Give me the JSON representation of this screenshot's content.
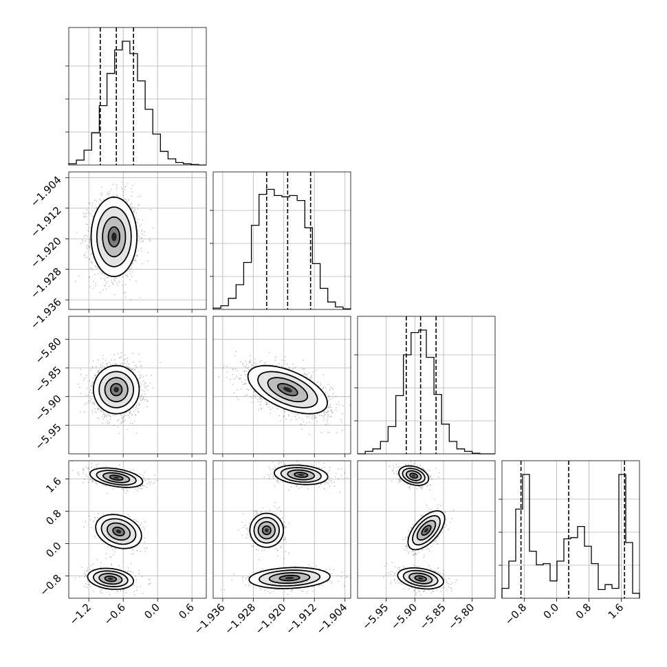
{
  "chart_data": {
    "type": "corner",
    "grid": true,
    "parameters": [
      {
        "range": [
          -1.55,
          0.85
        ],
        "ticks": [
          -1.2,
          -0.6,
          0.0,
          0.6
        ],
        "tick_labels": [
          "−1.2",
          "−0.6",
          "0.0",
          "0.6"
        ],
        "quantiles": [
          -1.0,
          -0.72,
          -0.42
        ],
        "histogram": [
          0.01,
          0.04,
          0.12,
          0.26,
          0.48,
          0.74,
          0.93,
          1.0,
          0.9,
          0.68,
          0.45,
          0.25,
          0.11,
          0.05,
          0.02,
          0.01,
          0.004,
          0.0
        ]
      },
      {
        "range": [
          -1.9385,
          -1.9025
        ],
        "ticks": [
          -1.936,
          -1.928,
          -1.92,
          -1.912,
          -1.904
        ],
        "tick_labels": [
          "−1.936",
          "−1.928",
          "−1.920",
          "−1.912",
          "−1.904"
        ],
        "quantiles": [
          -1.9245,
          -1.919,
          -1.913
        ],
        "histogram": [
          0.01,
          0.03,
          0.09,
          0.2,
          0.38,
          0.68,
          0.93,
          0.97,
          0.92,
          0.91,
          0.92,
          0.88,
          0.66,
          0.37,
          0.17,
          0.06,
          0.02,
          0.005
        ]
      },
      {
        "range": [
          -6.0,
          -5.76
        ],
        "ticks": [
          -5.95,
          -5.9,
          -5.85,
          -5.8
        ],
        "tick_labels": [
          "−5.95",
          "−5.90",
          "−5.85",
          "−5.80"
        ],
        "quantiles": [
          -5.915,
          -5.89,
          -5.863
        ],
        "histogram": [
          0.0,
          0.02,
          0.04,
          0.1,
          0.22,
          0.47,
          0.8,
          0.98,
          1.0,
          0.78,
          0.48,
          0.24,
          0.1,
          0.04,
          0.02,
          0.005,
          0.0,
          0.0
        ]
      },
      {
        "range": [
          -1.35,
          2.05
        ],
        "ticks": [
          -0.8,
          0.0,
          0.8,
          1.6
        ],
        "tick_labels": [
          "−0.8",
          "0.0",
          "0.8",
          "1.6"
        ],
        "quantiles": [
          -0.88,
          0.3,
          1.68
        ],
        "histogram": [
          0.08,
          0.3,
          0.72,
          1.0,
          0.38,
          0.27,
          0.28,
          0.14,
          0.3,
          0.48,
          0.49,
          0.58,
          0.42,
          0.28,
          0.07,
          0.11,
          0.08,
          1.0,
          0.45,
          0.04
        ]
      }
    ],
    "pairs": [
      {
        "row": 1,
        "col": 0,
        "blobs": [
          {
            "cx": -0.76,
            "cy": -1.9195,
            "sx": 0.2,
            "sy": 0.0052,
            "rho": 0.0,
            "w": 1.0
          }
        ]
      },
      {
        "row": 2,
        "col": 0,
        "blobs": [
          {
            "cx": -0.72,
            "cy": -5.888,
            "sx": 0.2,
            "sy": 0.021,
            "rho": 0.0,
            "w": 1.0
          }
        ]
      },
      {
        "row": 2,
        "col": 1,
        "blobs": [
          {
            "cx": -1.919,
            "cy": -5.888,
            "sx": 0.0052,
            "sy": 0.021,
            "rho": -0.55,
            "w": 1.0
          }
        ]
      },
      {
        "row": 3,
        "col": 0,
        "blobs": [
          {
            "cx": -0.72,
            "cy": 1.63,
            "sx": 0.23,
            "sy": 0.12,
            "rho": -0.4,
            "w": 0.36
          },
          {
            "cx": -0.68,
            "cy": 0.3,
            "sx": 0.2,
            "sy": 0.21,
            "rho": -0.25,
            "w": 0.3
          },
          {
            "cx": -0.82,
            "cy": -0.87,
            "sx": 0.2,
            "sy": 0.13,
            "rho": -0.2,
            "w": 0.36
          }
        ]
      },
      {
        "row": 3,
        "col": 1,
        "blobs": [
          {
            "cx": -1.9155,
            "cy": 1.7,
            "sx": 0.0035,
            "sy": 0.12,
            "rho": -0.2,
            "w": 0.36
          },
          {
            "cx": -1.9245,
            "cy": 0.33,
            "sx": 0.0022,
            "sy": 0.21,
            "rho": 0.0,
            "w": 0.3
          },
          {
            "cx": -1.9185,
            "cy": -0.85,
            "sx": 0.0053,
            "sy": 0.13,
            "rho": 0.15,
            "w": 0.36
          }
        ]
      },
      {
        "row": 3,
        "col": 2,
        "blobs": [
          {
            "cx": -5.902,
            "cy": 1.68,
            "sx": 0.013,
            "sy": 0.12,
            "rho": -0.3,
            "w": 0.36
          },
          {
            "cx": -5.88,
            "cy": 0.33,
            "sx": 0.016,
            "sy": 0.24,
            "rho": 0.6,
            "w": 0.3
          },
          {
            "cx": -5.89,
            "cy": -0.86,
            "sx": 0.02,
            "sy": 0.13,
            "rho": -0.3,
            "w": 0.36
          }
        ]
      }
    ]
  }
}
